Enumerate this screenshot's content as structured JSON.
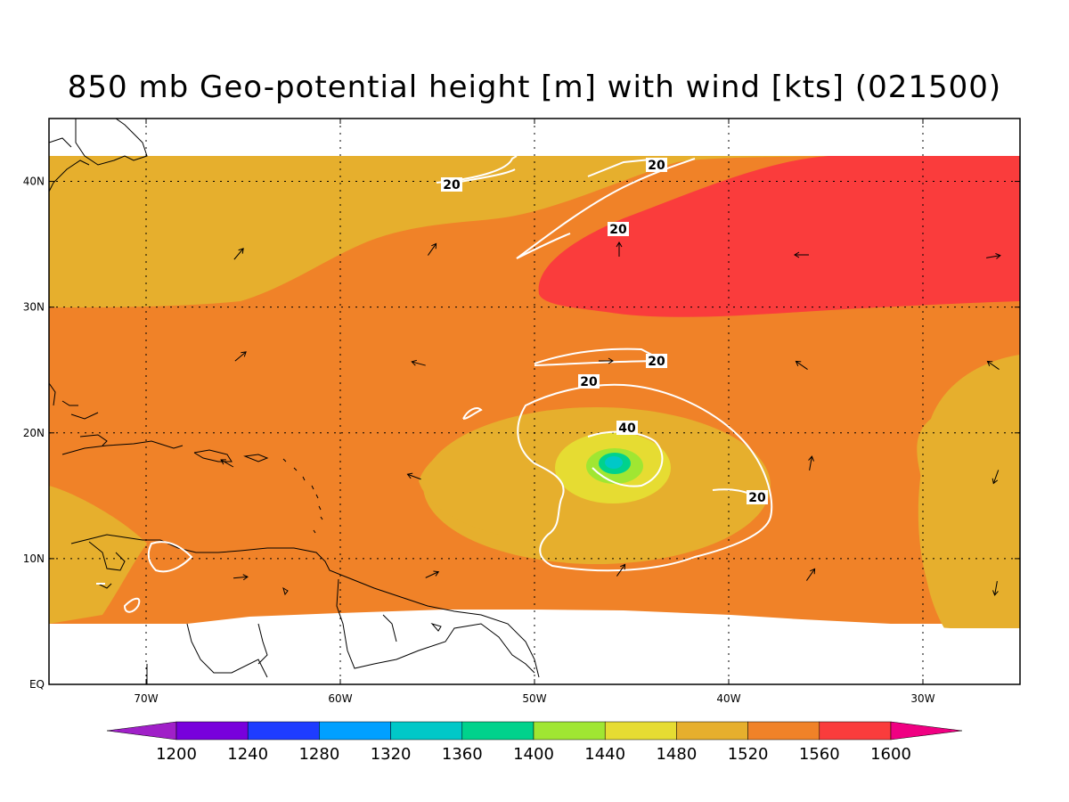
{
  "title": "850 mb Geo-potential height [m] with wind [kts] (021500)",
  "map": {
    "lon_range": [
      -75,
      -25
    ],
    "lat_range": [
      0,
      45
    ],
    "lon_ticks": [
      {
        "v": -70,
        "label": "70W"
      },
      {
        "v": -60,
        "label": "60W"
      },
      {
        "v": -50,
        "label": "50W"
      },
      {
        "v": -40,
        "label": "40W"
      },
      {
        "v": -30,
        "label": "30W"
      }
    ],
    "lat_ticks": [
      {
        "v": 0,
        "label": "EQ"
      },
      {
        "v": 10,
        "label": "10N"
      },
      {
        "v": 20,
        "label": "20N"
      },
      {
        "v": 30,
        "label": "30N"
      },
      {
        "v": 40,
        "label": "40N"
      }
    ],
    "grid": "dotted"
  },
  "colorbar": {
    "levels": [
      "1200",
      "1240",
      "1280",
      "1320",
      "1360",
      "1400",
      "1440",
      "1480",
      "1520",
      "1560",
      "1600"
    ],
    "colors": [
      "#a020c8",
      "#7800dc",
      "#1e3cff",
      "#00a0ff",
      "#00c8c8",
      "#00d28c",
      "#a0e632",
      "#e6dc32",
      "#e6af2d",
      "#f08228",
      "#fa3c3c",
      "#f00082"
    ]
  },
  "contour_labels": [
    "20",
    "20",
    "20",
    "20",
    "20",
    "20",
    "40"
  ]
}
